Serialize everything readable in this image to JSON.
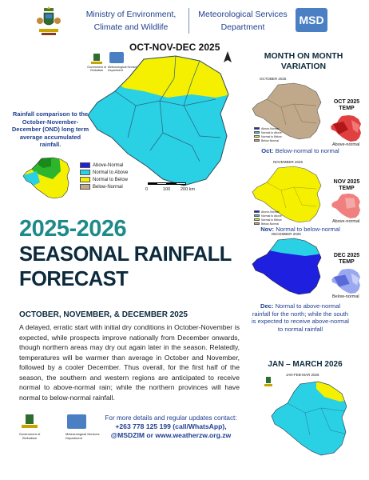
{
  "header": {
    "ministry_line1": "Ministry of Environment,",
    "ministry_line2": "Climate and Wildlife",
    "met_line1": "Meteorological Services",
    "met_line2": "Department",
    "msd_logo_text": "MSD"
  },
  "main_map": {
    "title": "OCT-NOV-DEC 2025",
    "gov_caption": "Government of Zimbabwe",
    "msd_caption": "Meteorological Services Department",
    "scale_labels": [
      "0",
      "100",
      "200 km"
    ]
  },
  "legend": {
    "items": [
      {
        "label": "Above-Normal",
        "color": "#1f1fe0"
      },
      {
        "label": "Normal to Above",
        "color": "#2ad1e4"
      },
      {
        "label": "Normal to Below",
        "color": "#f4f000"
      },
      {
        "label": "Below-Normal",
        "color": "#c0a98a"
      }
    ]
  },
  "comparison": {
    "text": "Rainfall comparison to the October-November-December (OND) long term average accumulated rainfall."
  },
  "title": {
    "line1": "2025-2026",
    "line2": "SEASONAL RAINFALL",
    "line3": "FORECAST"
  },
  "body": {
    "heading": "OCTOBER, NOVEMBER, & DECEMBER 2025",
    "paragraph": "A delayed, erratic start with initial dry conditions in October-November is expected, while prospects improve nationally from December onwards, though northern areas may dry out again later in the season. Relatedly, temperatures will be warmer than average in October and November, followed by a cooler December. Thus overall, for the first half of the season, the southern and western regions are anticipated to receive normal to above-normal rain; while the northern provinces will have normal to below-normal rainfall."
  },
  "contact": {
    "line1": "For more details and regular updates contact:",
    "line2": "+263 778 125 199 (call/WhatsApp),",
    "line3": "@MSDZIM or www.weatherzw.org.zw",
    "gov_caption": "Government of Zimbabwe",
    "msd_caption": "Meteorological Services Department"
  },
  "sidebar": {
    "title_line1": "MONTH ON MONTH",
    "title_line2": "VARIATION",
    "months": [
      {
        "map_title": "OCTOBER 2025",
        "temp_title_line1": "OCT 2025",
        "temp_title_line2": "TEMP",
        "temp_label": "Above-normal",
        "caption_bold": "Oct:",
        "caption": "Below-normal to normal"
      },
      {
        "map_title": "NOVEMBER 2025",
        "temp_title_line1": "NOV 2025",
        "temp_title_line2": "TEMP",
        "temp_label": "Above-normal",
        "caption_bold": "Nov:",
        "caption": "Normal to below-normal"
      },
      {
        "map_title": "DECEMBER 2025",
        "temp_title_line1": "DEC 2025",
        "temp_title_line2": "TEMP",
        "temp_label": "Below-normal",
        "caption_bold": "Dec:",
        "caption": "Normal to above-normal rainfall for the north; while the south is expected to receive above-normal to normal rainfall"
      }
    ],
    "jfm_title": "JAN – MARCH 2026",
    "jfm_map_title": "JAN-FEB-MAR 2026"
  },
  "colors": {
    "title_teal": "#1f8a8a",
    "title_dark": "#0c2a3c",
    "header_blue": "#1f3f8f",
    "above": "#1f1fe0",
    "normal_above": "#2ad1e4",
    "normal_below": "#f4f000",
    "below": "#c0a98a"
  }
}
